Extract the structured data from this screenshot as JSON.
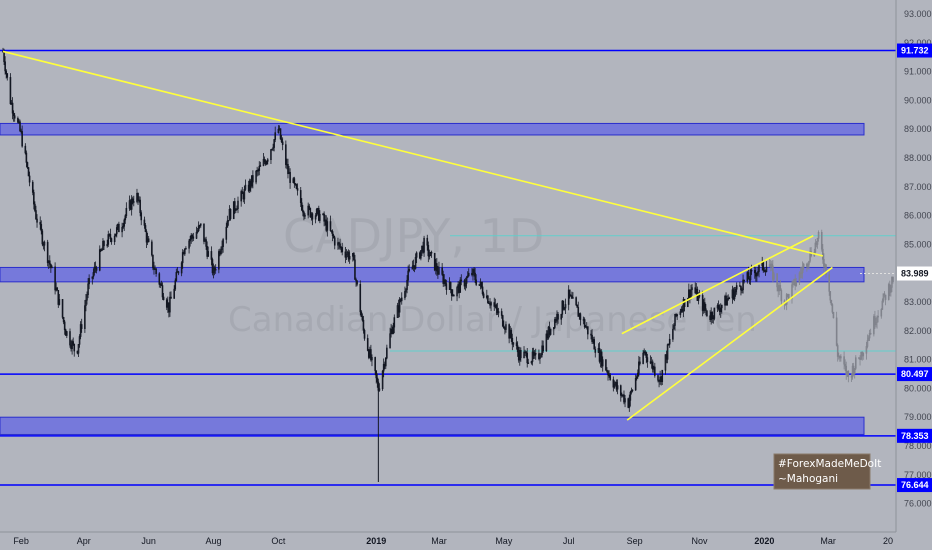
{
  "chart_data": {
    "type": "line",
    "symbol": "CADJPY, 1D",
    "description": "Canadian Dollar / Japanese Yen",
    "ylim": [
      75.3,
      93.4
    ],
    "y_ticks": [
      "93.000",
      "92.000",
      "91.000",
      "90.000",
      "89.000",
      "88.000",
      "87.000",
      "86.000",
      "85.000",
      "84.000",
      "83.000",
      "82.000",
      "81.000",
      "80.000",
      "79.000",
      "78.000",
      "77.000",
      "76.000"
    ],
    "x_ticks": [
      "Feb",
      "Apr",
      "Jun",
      "Aug",
      "Oct",
      "2019",
      "Mar",
      "May",
      "Jul",
      "Sep",
      "Nov",
      "2020",
      "Mar",
      "20"
    ],
    "price_series": {
      "name": "",
      "x": [
        "2018-01-15",
        "2018-01-22",
        "2018-02-01",
        "2018-02-15",
        "2018-03-01",
        "2018-03-15",
        "2018-03-25",
        "2018-04-05",
        "2018-04-20",
        "2018-05-05",
        "2018-05-20",
        "2018-06-05",
        "2018-06-20",
        "2018-07-05",
        "2018-07-20",
        "2018-08-01",
        "2018-08-15",
        "2018-09-01",
        "2018-09-20",
        "2018-10-01",
        "2018-10-10",
        "2018-10-25",
        "2018-11-10",
        "2018-11-25",
        "2018-12-10",
        "2018-12-20",
        "2019-01-03",
        "2019-01-15",
        "2019-02-01",
        "2019-02-15",
        "2019-03-01",
        "2019-03-15",
        "2019-04-01",
        "2019-04-15",
        "2019-05-01",
        "2019-05-15",
        "2019-06-01",
        "2019-06-15",
        "2019-07-01",
        "2019-07-15",
        "2019-08-01",
        "2019-08-15",
        "2019-08-26",
        "2019-09-10",
        "2019-09-25",
        "2019-10-10",
        "2019-10-25",
        "2019-11-10",
        "2019-11-25",
        "2019-12-10",
        "2019-12-25",
        "2020-01-05"
      ],
      "values": [
        91.7,
        90.0,
        88.8,
        86.0,
        84.2,
        82.0,
        81.2,
        83.5,
        85.0,
        85.6,
        86.8,
        84.3,
        82.8,
        85.0,
        85.6,
        84.0,
        86.0,
        86.9,
        88.0,
        89.0,
        87.5,
        86.2,
        86.0,
        85.0,
        84.5,
        82.0,
        80.0,
        82.0,
        84.0,
        85.0,
        84.0,
        83.3,
        84.0,
        83.2,
        82.3,
        81.2,
        81.0,
        82.2,
        83.2,
        82.3,
        81.0,
        80.0,
        79.5,
        81.3,
        80.3,
        82.5,
        83.5,
        82.5,
        83.0,
        83.6,
        84.1,
        84.3
      ]
    },
    "hidden_series": {
      "x": [
        "2020-01-05",
        "2020-01-20",
        "2020-02-01",
        "2020-02-15",
        "2020-02-21",
        "2020-03-01",
        "2020-03-10",
        "2020-03-20",
        "2020-04-01",
        "2020-04-15",
        "2020-05-01"
      ],
      "values": [
        84.3,
        83.0,
        83.8,
        84.8,
        85.2,
        83.8,
        81.2,
        80.4,
        81.2,
        82.5,
        83.8
      ]
    },
    "zones": [
      {
        "y_low": 88.8,
        "y_high": 89.2
      },
      {
        "y_low": 83.7,
        "y_high": 84.2
      },
      {
        "y_low": 78.4,
        "y_high": 79.0
      }
    ],
    "horizontal_levels": [
      {
        "value": 91.732,
        "label": "91.732"
      },
      {
        "value": 80.497,
        "label": "80.497"
      },
      {
        "value": 78.353,
        "label": "78.353"
      },
      {
        "value": 76.644,
        "label": "76.644"
      }
    ],
    "teal_levels": [
      85.3,
      81.3
    ],
    "trendlines": [
      {
        "from": [
          "2018-01-15",
          91.7
        ],
        "to": [
          "2020-02-25",
          84.6
        ]
      },
      {
        "from": [
          "2019-08-20",
          81.9
        ],
        "to": [
          "2020-02-16",
          85.3
        ]
      },
      {
        "from": [
          "2019-08-25",
          78.9
        ],
        "to": [
          "2020-03-05",
          84.2
        ]
      }
    ],
    "current_price": {
      "value": 83.989,
      "label": "83.989"
    },
    "colors": {
      "background": "#b2b5be",
      "zone_fill": "#6b6ee0",
      "zone_border": "#2a2ecc",
      "level_line": "#0000ff",
      "trendline": "#ffff3b",
      "teal": "#4fd6d0",
      "candle": "#131722",
      "hidden_candle": "#80838c",
      "note_bg": "#6e5b4a"
    }
  },
  "watermark": {
    "symbol": "CADJPY, 1D",
    "description": "Canadian Dollar / Japanese Yen"
  },
  "note": {
    "line1": "#ForexMadeMeDoIt",
    "line2": "~Mahogani"
  }
}
